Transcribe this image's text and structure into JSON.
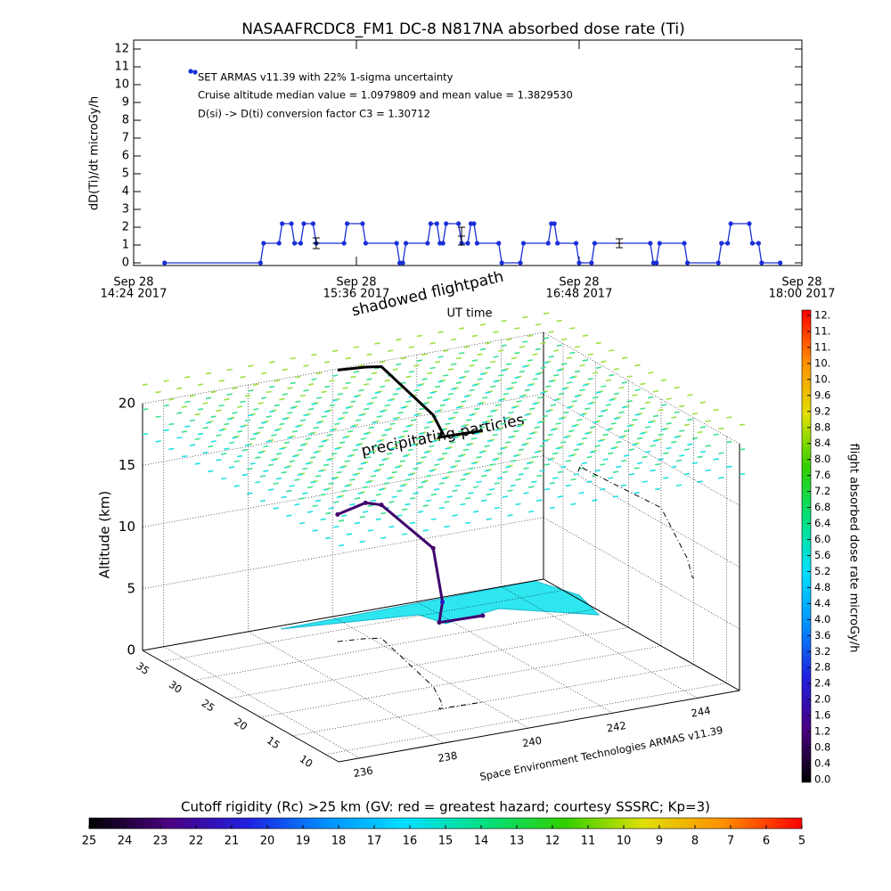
{
  "chart_data": [
    {
      "type": "line",
      "title": "NASAAFRCDC8_FM1 DC-8   N817NA absorbed dose rate (Ti)",
      "y_label": "dD(Ti)/dt microGy/h",
      "annotations": [
        "Cruise altitude median value = 1.0979809 and mean value = 1.3829530",
        "D(si) -> D(ti) conversion factor C3 = 1.30712"
      ],
      "xlim": [
        "14:24",
        "18:00"
      ],
      "xticks": [
        {
          "value": "14:24",
          "label": [
            "Sep 28",
            "14:24 2017"
          ]
        },
        {
          "value": "15:36",
          "label": [
            "Sep 28",
            "15:36 2017"
          ]
        },
        {
          "value": "16:48",
          "label": [
            "Sep 28",
            "16:48 2017"
          ]
        },
        {
          "value": "18:00",
          "label": [
            "Sep 28",
            "18:00 2017"
          ]
        }
      ],
      "ylim": [
        -0.15,
        12.5
      ],
      "yticks": [
        0,
        1,
        2,
        3,
        4,
        5,
        6,
        7,
        8,
        9,
        10,
        11,
        12
      ],
      "x": [
        "14:34",
        "15:05",
        "15:06",
        "15:11",
        "15:12",
        "15:15",
        "15:16",
        "15:18",
        "15:19",
        "15:22",
        "15:23",
        "15:32",
        "15:33",
        "15:38",
        "15:39",
        "15:49",
        "15:50",
        "15:51",
        "15:52",
        "15:59",
        "16:00",
        "16:02",
        "16:03",
        "16:04",
        "16:05",
        "16:09",
        "16:10",
        "16:12",
        "16:13",
        "16:14",
        "16:15",
        "16:22",
        "16:23",
        "16:29",
        "16:30",
        "16:38",
        "16:39",
        "16:40",
        "16:41",
        "16:47",
        "16:48",
        "16:52",
        "16:53",
        "17:11",
        "17:12",
        "17:13",
        "17:14",
        "17:22",
        "17:23",
        "17:33",
        "17:34",
        "17:36",
        "17:37",
        "17:43",
        "17:44",
        "17:46",
        "17:47",
        "17:53"
      ],
      "series": [
        {
          "name": "SET ARMAS v11.39 with 22% 1-sigma uncertainty",
          "color": "#1a2fd8",
          "values": [
            0,
            0,
            1.1,
            1.1,
            2.2,
            2.2,
            1.1,
            1.1,
            2.2,
            2.2,
            1.1,
            1.1,
            2.2,
            2.2,
            1.1,
            1.1,
            0,
            0,
            1.1,
            1.1,
            2.2,
            2.2,
            1.1,
            1.1,
            2.2,
            2.2,
            1.1,
            1.1,
            2.2,
            2.2,
            1.1,
            1.1,
            0,
            0,
            1.1,
            1.1,
            2.2,
            2.2,
            1.1,
            1.1,
            0,
            0,
            1.1,
            1.1,
            0,
            0,
            1.1,
            1.1,
            0,
            0,
            1.1,
            1.1,
            2.2,
            2.2,
            1.1,
            1.1,
            0,
            0
          ]
        }
      ],
      "error_bars": {
        "x": [
          "15:23",
          "16:10",
          "17:01"
        ],
        "values": [
          1.1,
          1.5,
          1.1
        ],
        "errors": [
          0.3,
          0.5,
          0.25
        ]
      }
    },
    {
      "type": "3d",
      "texts": {
        "shadow": "shadowed flightpath",
        "time": "UT time",
        "particles": "precipitating particles",
        "credit": "Space Environment Technologies ARMAS v11.39"
      },
      "z_label": "Altitude (km)",
      "lonlim": [
        235.5,
        245
      ],
      "lonticks": [
        236,
        238,
        240,
        242,
        244
      ],
      "latlim": [
        8,
        38
      ],
      "latticks": [
        10,
        15,
        20,
        25,
        30,
        35
      ],
      "zlim": [
        0,
        20
      ],
      "zticks": [
        0,
        5,
        10,
        15,
        20
      ],
      "path": {
        "lon": [
          239.3,
          239.9,
          240.2,
          239.6,
          239.2,
          239.0,
          240.0
        ],
        "lat": [
          32.7,
          32.3,
          31.8,
          20.0,
          16.0,
          15.2,
          15.0
        ],
        "alt": [
          10.3,
          11.0,
          10.8,
          11.2,
          8.3,
          7.0,
          7.0
        ],
        "dose": [
          1.1,
          1.1,
          1.1,
          1.1,
          2.2,
          1.1,
          1.1
        ]
      },
      "colormap": [
        "#000000",
        "#4a0080",
        "#2020e0",
        "#0090ff",
        "#00e0ff",
        "#00e080",
        "#30d000",
        "#e0e000",
        "#ff9000",
        "#ff0000"
      ],
      "dose_colorbar": {
        "label": "flight absorbed dose rate microGy/h",
        "lim": [
          0,
          11.6
        ],
        "ticks": [
          {
            "value": 0,
            "label": "0.0"
          },
          0.4,
          0.8,
          1.2,
          1.6,
          {
            "value": 2,
            "label": "2.0"
          },
          2.4,
          2.8,
          3.2,
          3.6,
          {
            "value": 4,
            "label": "4.0"
          },
          4.4,
          4.8,
          5.2,
          5.6,
          {
            "value": 6,
            "label": "6.0"
          },
          6.4,
          6.8,
          7.2,
          7.6,
          {
            "value": 8,
            "label": "8.0"
          },
          8.4,
          8.8,
          9.2,
          9.6,
          {
            "value": 10,
            "label": "10."
          },
          {
            "value": 10.4,
            "label": "10."
          },
          {
            "value": 10.8,
            "label": "11."
          },
          {
            "value": 11.2,
            "label": "11."
          },
          {
            "value": 11.6,
            "label": "12."
          }
        ]
      },
      "rigidity_colorbar": {
        "label": "Cutoff rigidity (Rc) >25 km (GV: red = greatest hazard; courtesy SSSRC; Kp=3)",
        "lim": [
          25,
          5
        ],
        "ticks": [
          25,
          24,
          23,
          22,
          21,
          20,
          19,
          18,
          17,
          16,
          15,
          14,
          13,
          12,
          11,
          10,
          9,
          8,
          7,
          6,
          5
        ]
      }
    }
  ]
}
